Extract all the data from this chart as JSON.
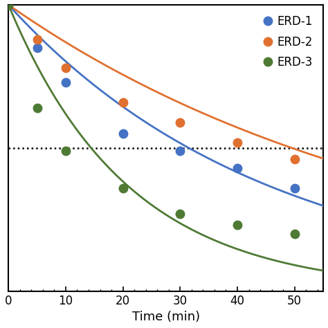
{
  "title": "",
  "xlabel": "Time (min)",
  "ylabel": "",
  "xlim": [
    0,
    55
  ],
  "ylim": [
    0,
    1.0
  ],
  "xmax": 55,
  "xticks": [
    0,
    10,
    20,
    30,
    40,
    50
  ],
  "dotted_line_y": 0.5,
  "series": [
    {
      "label": "ERD-1",
      "color": "#4472C4",
      "decay_rate": 0.022,
      "scatter_x": [
        5,
        10,
        20,
        30,
        40,
        50
      ],
      "scatter_y": [
        0.85,
        0.73,
        0.55,
        0.49,
        0.43,
        0.36
      ]
    },
    {
      "label": "ERD-2",
      "color": "#E07030",
      "decay_rate": 0.014,
      "scatter_x": [
        5,
        10,
        20,
        30,
        40,
        50
      ],
      "scatter_y": [
        0.88,
        0.78,
        0.66,
        0.59,
        0.52,
        0.46
      ]
    },
    {
      "label": "ERD-3",
      "color": "#4E7A34",
      "decay_rate": 0.048,
      "scatter_x": [
        5,
        10,
        20,
        30,
        40,
        50
      ],
      "scatter_y": [
        0.64,
        0.49,
        0.36,
        0.27,
        0.23,
        0.2
      ]
    }
  ],
  "background_color": "#ffffff",
  "legend_fontsize": 12,
  "axis_fontsize": 13,
  "tick_fontsize": 12,
  "marker_size": 9,
  "line_width": 2.0
}
